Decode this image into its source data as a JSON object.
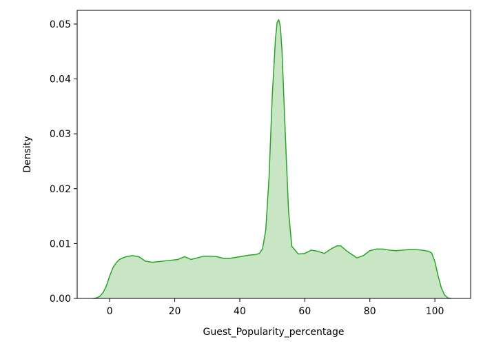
{
  "chart_data": {
    "type": "area",
    "title": "",
    "xlabel": "Guest_Popularity_percentage",
    "ylabel": "Density",
    "xlim": [
      -10,
      111
    ],
    "ylim": [
      0,
      0.0525
    ],
    "xticks": [
      0,
      20,
      40,
      60,
      80,
      100
    ],
    "xtick_labels": [
      "0",
      "20",
      "40",
      "60",
      "80",
      "100"
    ],
    "yticks": [
      0,
      0.01,
      0.02,
      0.03,
      0.04,
      0.05
    ],
    "ytick_labels": [
      "0.00",
      "0.01",
      "0.02",
      "0.03",
      "0.04",
      "0.05"
    ],
    "grid": false,
    "legend": false,
    "color": "#2ca02c",
    "fill_color": "#c8e6c3",
    "series": [
      {
        "x": [
          -5,
          -4,
          -3,
          -2,
          -1,
          0,
          1,
          2,
          3,
          5,
          7,
          9,
          11,
          13,
          15,
          18,
          21,
          23,
          25,
          27,
          29,
          31,
          33,
          35,
          37,
          40,
          43,
          45,
          46,
          47,
          48,
          49,
          50,
          51,
          51.5,
          52,
          52.5,
          53,
          54,
          55,
          56,
          58,
          60,
          62,
          64,
          66,
          68,
          70,
          71,
          73,
          76,
          78,
          80,
          82,
          84,
          86,
          88,
          90,
          92,
          94,
          96,
          98,
          99,
          100,
          101,
          102,
          103,
          104,
          105
        ],
        "y": [
          0.0,
          0.0001,
          0.0004,
          0.0011,
          0.0023,
          0.0041,
          0.0056,
          0.0065,
          0.0071,
          0.0076,
          0.0078,
          0.0076,
          0.0068,
          0.0066,
          0.0067,
          0.0069,
          0.0071,
          0.0076,
          0.0071,
          0.0074,
          0.0077,
          0.0077,
          0.0076,
          0.0073,
          0.0073,
          0.0076,
          0.0079,
          0.008,
          0.0082,
          0.009,
          0.0125,
          0.022,
          0.037,
          0.0475,
          0.0503,
          0.0508,
          0.0495,
          0.045,
          0.03,
          0.016,
          0.0095,
          0.0081,
          0.0082,
          0.0088,
          0.0086,
          0.0082,
          0.009,
          0.0096,
          0.0096,
          0.0086,
          0.0074,
          0.0078,
          0.0087,
          0.009,
          0.009,
          0.0088,
          0.0087,
          0.0088,
          0.0089,
          0.0089,
          0.0088,
          0.0086,
          0.0083,
          0.0067,
          0.0041,
          0.0019,
          0.0006,
          0.0001,
          0.0
        ]
      }
    ]
  }
}
